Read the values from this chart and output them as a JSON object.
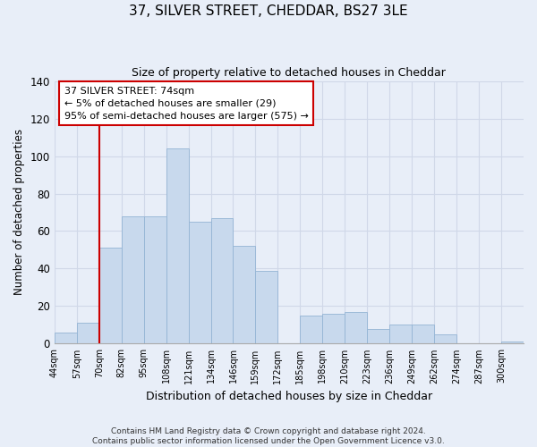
{
  "title": "37, SILVER STREET, CHEDDAR, BS27 3LE",
  "subtitle": "Size of property relative to detached houses in Cheddar",
  "xlabel": "Distribution of detached houses by size in Cheddar",
  "ylabel": "Number of detached properties",
  "bin_labels": [
    "44sqm",
    "57sqm",
    "70sqm",
    "82sqm",
    "95sqm",
    "108sqm",
    "121sqm",
    "134sqm",
    "146sqm",
    "159sqm",
    "172sqm",
    "185sqm",
    "198sqm",
    "210sqm",
    "223sqm",
    "236sqm",
    "249sqm",
    "262sqm",
    "274sqm",
    "287sqm",
    "300sqm"
  ],
  "bar_heights": [
    6,
    11,
    51,
    68,
    68,
    104,
    65,
    67,
    52,
    39,
    0,
    15,
    16,
    17,
    8,
    10,
    10,
    5,
    0,
    0,
    1
  ],
  "bar_color": "#c8d9ed",
  "bar_edge_color": "#94b4d4",
  "vline_color": "#cc0000",
  "vline_x_index": 2,
  "annotation_text": "37 SILVER STREET: 74sqm\n← 5% of detached houses are smaller (29)\n95% of semi-detached houses are larger (575) →",
  "annotation_box_facecolor": "#ffffff",
  "annotation_box_edgecolor": "#cc0000",
  "ylim": [
    0,
    140
  ],
  "yticks": [
    0,
    20,
    40,
    60,
    80,
    100,
    120,
    140
  ],
  "grid_color": "#d0d8e8",
  "bg_color": "#e8eef8",
  "footer_line1": "Contains HM Land Registry data © Crown copyright and database right 2024.",
  "footer_line2": "Contains public sector information licensed under the Open Government Licence v3.0."
}
